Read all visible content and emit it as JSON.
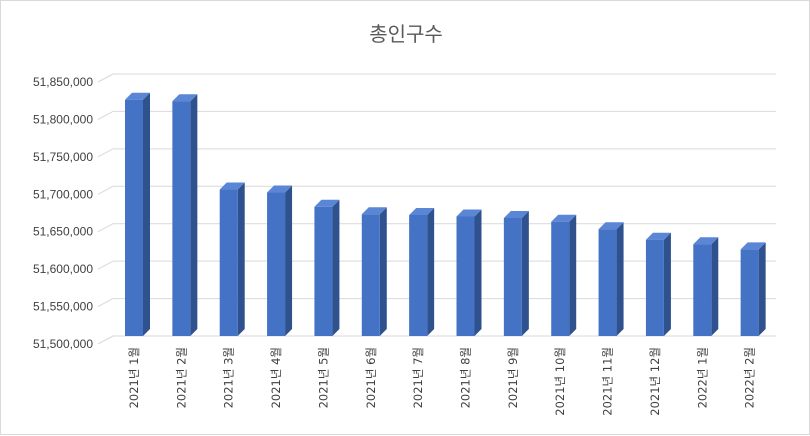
{
  "chart_data": {
    "type": "bar",
    "style": "3d-column",
    "title": "총인구수",
    "xlabel": "",
    "ylabel": "",
    "categories": [
      "2021년 1월",
      "2021년 2월",
      "2021년 3월",
      "2021년 4월",
      "2021년 5월",
      "2021년 6월",
      "2021년 7월",
      "2021년 8월",
      "2021년 9월",
      "2021년 10월",
      "2021년 11월",
      "2021년 12월",
      "2022년 1월",
      "2022년 2월"
    ],
    "values": [
      51825000,
      51823000,
      51705000,
      51701000,
      51682000,
      51672000,
      51671000,
      51669000,
      51667000,
      51662000,
      51652000,
      51638000,
      51632000,
      51625000
    ],
    "ylim": [
      51500000,
      51850000
    ],
    "yticks": [
      51500000,
      51550000,
      51600000,
      51650000,
      51700000,
      51750000,
      51800000,
      51850000
    ],
    "ytick_labels": [
      "51,500,000",
      "51,550,000",
      "51,600,000",
      "51,650,000",
      "51,700,000",
      "51,750,000",
      "51,800,000",
      "51,850,000"
    ],
    "grid": true,
    "legend": "none",
    "colors": {
      "bar_front": "#4472c4",
      "bar_side": "#2f528f",
      "bar_top": "#5b86d6",
      "grid": "#d9d9d9",
      "text": "#404040",
      "title": "#595959"
    }
  }
}
